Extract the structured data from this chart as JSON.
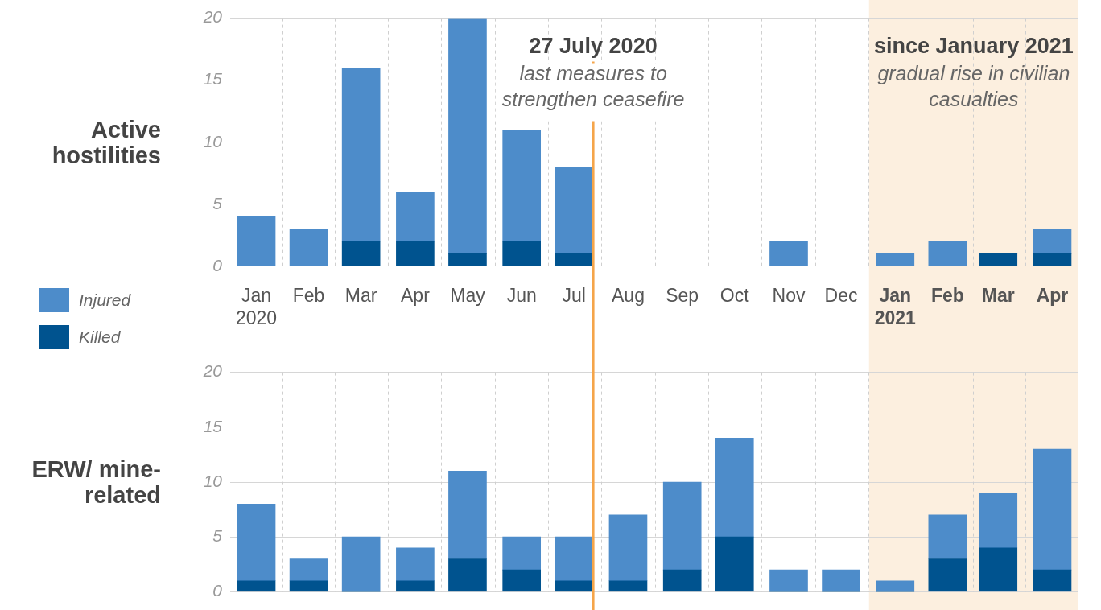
{
  "chart_data": [
    {
      "type": "bar",
      "stacked": true,
      "ylabel": "Active hostilities",
      "x": [
        "2020-01-16",
        "2020-02-15",
        "2020-03-16",
        "2020-04-16",
        "2020-05-16",
        "2020-06-16",
        "2020-07-16",
        "2020-08-16",
        "2020-09-16",
        "2020-10-16",
        "2020-11-16",
        "2020-12-16",
        "2021-01-16",
        "2021-02-15",
        "2021-03-16",
        "2021-04-16"
      ],
      "xlim": [
        "2020-01-01",
        "2021-05-01"
      ],
      "xticks": [
        {
          "value": "2020-01-16",
          "label": "Jan 2020"
        },
        {
          "value": "2020-02-15",
          "label": "Feb"
        },
        {
          "value": "2020-03-16",
          "label": "Mar"
        },
        {
          "value": "2020-04-16",
          "label": "Apr"
        },
        {
          "value": "2020-05-16",
          "label": "May"
        },
        {
          "value": "2020-06-16",
          "label": "Jun"
        },
        {
          "value": "2020-07-16",
          "label": "Jul"
        },
        {
          "value": "2020-08-16",
          "label": "Aug"
        },
        {
          "value": "2020-09-16",
          "label": "Sep"
        },
        {
          "value": "2020-10-16",
          "label": "Oct"
        },
        {
          "value": "2020-11-16",
          "label": "Nov"
        },
        {
          "value": "2020-12-16",
          "label": "Dec"
        },
        {
          "value": "2021-01-16",
          "label": "Jan 2021"
        },
        {
          "value": "2021-02-15",
          "label": "Feb"
        },
        {
          "value": "2021-03-16",
          "label": "Mar"
        },
        {
          "value": "2021-04-16",
          "label": "Apr"
        }
      ],
      "series": [
        {
          "name": "Killed",
          "color": "#00538f",
          "values": [
            0,
            0,
            2,
            2,
            1,
            2,
            1,
            0,
            0,
            0,
            0,
            0,
            0,
            0,
            1,
            1
          ]
        },
        {
          "name": "Injured",
          "color": "#4d8cca",
          "values": [
            4,
            3,
            14,
            4,
            19,
            9,
            7,
            0,
            0,
            0,
            2,
            0,
            1,
            2,
            0,
            2
          ]
        }
      ],
      "ylim": [
        0,
        20
      ],
      "yticks": [
        0,
        5,
        10,
        15,
        20
      ],
      "grid": true,
      "legend": "left",
      "ref_lines": [
        {
          "axis": "x",
          "value": "2020-07-27",
          "label": "27 July 2020",
          "color": "#f5a54a"
        }
      ],
      "bands": [
        {
          "axis": "x",
          "from": "2021-01-01",
          "to": "2021-05-01",
          "label": "since January 2021",
          "color": "#fcefdf"
        }
      ],
      "annotations": [
        "last measures to strengthen ceasefire",
        "gradual rise in civilian casualties"
      ]
    },
    {
      "type": "bar",
      "stacked": true,
      "ylabel": "ERW/ mine-related",
      "x": [
        "2020-01-16",
        "2020-02-15",
        "2020-03-16",
        "2020-04-16",
        "2020-05-16",
        "2020-06-16",
        "2020-07-16",
        "2020-08-16",
        "2020-09-16",
        "2020-10-16",
        "2020-11-16",
        "2020-12-16",
        "2021-01-16",
        "2021-02-15",
        "2021-03-16",
        "2021-04-16"
      ],
      "xlim": [
        "2020-01-01",
        "2021-05-01"
      ],
      "xticks": [
        {
          "value": "2020-01-16",
          "label": "Jan 2020"
        },
        {
          "value": "2020-02-15",
          "label": "Feb"
        },
        {
          "value": "2020-03-16",
          "label": "Mar"
        },
        {
          "value": "2020-04-16",
          "label": "Apr"
        },
        {
          "value": "2020-05-16",
          "label": "May"
        },
        {
          "value": "2020-06-16",
          "label": "Jun"
        },
        {
          "value": "2020-07-16",
          "label": "Jul"
        },
        {
          "value": "2020-08-16",
          "label": "Aug"
        },
        {
          "value": "2020-09-16",
          "label": "Sep"
        },
        {
          "value": "2020-10-16",
          "label": "Oct"
        },
        {
          "value": "2020-11-16",
          "label": "Nov"
        },
        {
          "value": "2020-12-16",
          "label": "Dec"
        },
        {
          "value": "2021-01-16",
          "label": "Jan 2021"
        },
        {
          "value": "2021-02-15",
          "label": "Feb"
        },
        {
          "value": "2021-03-16",
          "label": "Mar"
        },
        {
          "value": "2021-04-16",
          "label": "Apr"
        }
      ],
      "series": [
        {
          "name": "Killed",
          "color": "#00538f",
          "values": [
            1,
            1,
            0,
            1,
            3,
            2,
            1,
            1,
            2,
            5,
            0,
            0,
            0,
            3,
            4,
            2
          ]
        },
        {
          "name": "Injured",
          "color": "#4d8cca",
          "values": [
            7,
            2,
            5,
            3,
            8,
            3,
            4,
            6,
            8,
            9,
            2,
            2,
            1,
            4,
            5,
            11
          ]
        }
      ],
      "ylim": [
        0,
        20
      ],
      "yticks": [
        0,
        5,
        10,
        15,
        20
      ],
      "grid": true,
      "tick_labels": "y",
      "ref_lines": [
        {
          "axis": "x",
          "value": "2020-07-27",
          "color": "#f5a54a"
        }
      ],
      "bands": [
        {
          "axis": "x",
          "from": "2021-01-01",
          "to": "2021-05-01",
          "color": "#fcefdf"
        }
      ]
    }
  ]
}
